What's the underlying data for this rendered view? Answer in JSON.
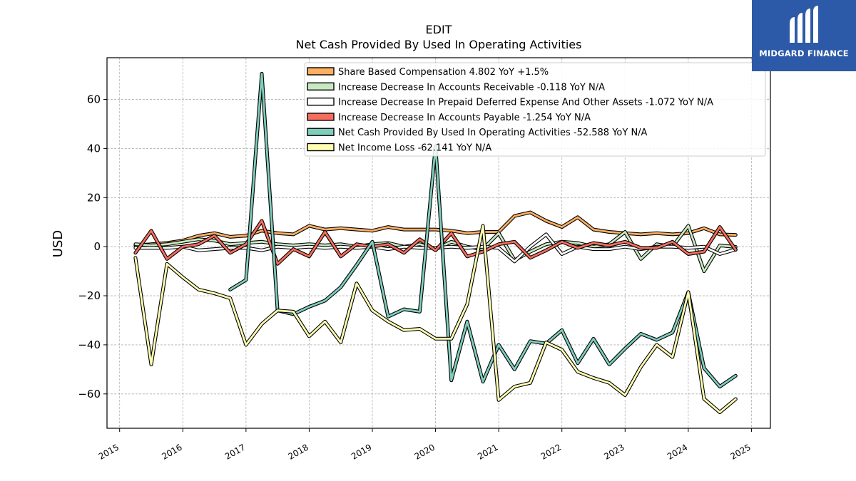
{
  "brand": {
    "name": "MIDGARD FINANCE",
    "bg": "#2d5aa8"
  },
  "chart_data": {
    "type": "line",
    "title": "EDIT",
    "subtitle": "Net Cash Provided By Used In Operating Activities",
    "xlabel": "",
    "ylabel": "USD",
    "xlim": [
      2014.8,
      2025.3
    ],
    "ylim": [
      -74,
      77
    ],
    "x_ticks": [
      2015,
      2016,
      2017,
      2018,
      2019,
      2020,
      2021,
      2022,
      2023,
      2024,
      2025
    ],
    "x_tick_labels": [
      "2015",
      "2016",
      "2017",
      "2018",
      "2019",
      "2020",
      "2021",
      "2022",
      "2023",
      "2024",
      "2025"
    ],
    "y_ticks": [
      -60,
      -40,
      -20,
      0,
      20,
      40,
      60
    ],
    "y_tick_labels": [
      "−60",
      "−40",
      "−20",
      "0",
      "20",
      "40",
      "60"
    ],
    "grid": true,
    "legend_position": "top-right",
    "series": [
      {
        "name": "Share Based Compensation",
        "legend_label": "Share Based Compensation  4.802 YoY +1.5%",
        "color": "#fdae61",
        "x": [
          2015.25,
          2015.5,
          2015.75,
          2016.0,
          2016.25,
          2016.5,
          2016.75,
          2017.0,
          2017.25,
          2017.5,
          2017.75,
          2018.0,
          2018.25,
          2018.5,
          2018.75,
          2019.0,
          2019.25,
          2019.5,
          2019.75,
          2020.0,
          2020.25,
          2020.5,
          2020.75,
          2021.0,
          2021.25,
          2021.5,
          2021.75,
          2022.0,
          2022.25,
          2022.5,
          2022.75,
          2023.0,
          2023.25,
          2023.5,
          2023.75,
          2024.0,
          2024.25,
          2024.5,
          2024.75
        ],
        "y": [
          0.5,
          1.0,
          1.5,
          2.5,
          4.5,
          5.5,
          4.0,
          4.5,
          6.5,
          5.5,
          5.0,
          8.5,
          7.0,
          7.5,
          7.0,
          6.5,
          8.0,
          7.0,
          7.0,
          7.0,
          6.5,
          5.5,
          6.0,
          6.0,
          12.5,
          14.0,
          10.5,
          8.0,
          12.0,
          7.0,
          6.0,
          5.5,
          5.0,
          5.5,
          5.0,
          5.5,
          7.5,
          5.0,
          4.8
        ]
      },
      {
        "name": "Increase Decrease In Accounts Receivable",
        "legend_label": "Increase Decrease In Accounts Receivable  -0.118 YoY N/A",
        "color": "#c7e9c0",
        "x": [
          2015.25,
          2015.5,
          2015.75,
          2016.0,
          2016.25,
          2016.5,
          2016.75,
          2017.0,
          2017.25,
          2017.5,
          2017.75,
          2018.0,
          2018.25,
          2018.5,
          2018.75,
          2019.0,
          2019.25,
          2019.5,
          2019.75,
          2020.0,
          2020.25,
          2020.5,
          2020.75,
          2021.0,
          2021.25,
          2021.5,
          2021.75,
          2022.0,
          2022.25,
          2022.5,
          2022.75,
          2023.0,
          2023.25,
          2023.5,
          2023.75,
          2024.0,
          2024.25,
          2024.5,
          2024.75
        ],
        "y": [
          1.0,
          0.5,
          1.0,
          2.0,
          3.0,
          2.5,
          1.0,
          1.5,
          2.0,
          1.0,
          0.5,
          1.0,
          0.5,
          1.0,
          0.0,
          1.0,
          1.5,
          0.0,
          1.0,
          -1.0,
          2.0,
          0.0,
          -1.0,
          5.5,
          -5.5,
          -2.0,
          1.0,
          2.0,
          1.5,
          0.0,
          1.0,
          6.0,
          -5.0,
          1.0,
          0.0,
          8.5,
          -10.0,
          0.5,
          -0.1
        ]
      },
      {
        "name": "Increase Decrease In Prepaid Deferred Expense And Other Assets",
        "legend_label": "Increase Decrease In Prepaid Deferred Expense And Other Assets  -1.072 YoY N/A",
        "color": "#ffffff",
        "x": [
          2015.25,
          2015.5,
          2015.75,
          2016.0,
          2016.25,
          2016.5,
          2016.75,
          2017.0,
          2017.25,
          2017.5,
          2017.75,
          2018.0,
          2018.25,
          2018.5,
          2018.75,
          2019.0,
          2019.25,
          2019.5,
          2019.75,
          2020.0,
          2020.25,
          2020.5,
          2020.75,
          2021.0,
          2021.25,
          2021.5,
          2021.75,
          2022.0,
          2022.25,
          2022.5,
          2022.75,
          2023.0,
          2023.25,
          2023.5,
          2023.75,
          2024.0,
          2024.25,
          2024.5,
          2024.75
        ],
        "y": [
          -0.5,
          -0.5,
          -0.5,
          0.0,
          -1.5,
          -1.0,
          -0.5,
          -0.5,
          -1.5,
          0.0,
          -0.5,
          0.0,
          -0.5,
          0.0,
          -0.5,
          0.0,
          -1.0,
          0.0,
          -0.5,
          -0.5,
          0.0,
          -0.5,
          0.0,
          -0.5,
          -6.0,
          0.0,
          5.0,
          -3.0,
          0.0,
          -1.0,
          -1.0,
          0.0,
          -1.0,
          0.0,
          0.0,
          -0.5,
          0.0,
          -3.0,
          -1.1
        ]
      },
      {
        "name": "Increase Decrease In Accounts Payable",
        "legend_label": "Increase Decrease In Accounts Payable  -1.254 YoY N/A",
        "color": "#f46d5d",
        "x": [
          2015.25,
          2015.5,
          2015.75,
          2016.0,
          2016.25,
          2016.5,
          2016.75,
          2017.0,
          2017.25,
          2017.5,
          2017.75,
          2018.0,
          2018.25,
          2018.5,
          2018.75,
          2019.0,
          2019.25,
          2019.5,
          2019.75,
          2020.0,
          2020.25,
          2020.5,
          2020.75,
          2021.0,
          2021.25,
          2021.5,
          2021.75,
          2022.0,
          2022.25,
          2022.5,
          2022.75,
          2023.0,
          2023.25,
          2023.5,
          2023.75,
          2024.0,
          2024.25,
          2024.5,
          2024.75
        ],
        "y": [
          -2.5,
          6.5,
          -5.0,
          0.0,
          1.0,
          4.5,
          -2.5,
          1.0,
          10.5,
          -7.0,
          -1.0,
          -4.0,
          6.0,
          -4.0,
          1.0,
          0.0,
          1.0,
          -2.5,
          3.0,
          -1.5,
          5.5,
          -4.0,
          -2.0,
          1.0,
          2.0,
          -4.5,
          -1.5,
          2.0,
          -0.5,
          1.5,
          0.5,
          2.0,
          -0.5,
          -0.5,
          2.0,
          -3.0,
          -2.0,
          8.0,
          -1.3
        ]
      },
      {
        "name": "Net Cash Provided By Used In Operating Activities",
        "legend_label": "Net Cash Provided By Used In Operating Activities  -52.588 YoY N/A",
        "color": "#7fcdbb",
        "x": [
          2016.75,
          2017.0,
          2017.25,
          2017.5,
          2017.75,
          2018.0,
          2018.25,
          2018.5,
          2018.75,
          2019.0,
          2019.25,
          2019.5,
          2019.75,
          2020.0,
          2020.25,
          2020.5,
          2020.75,
          2021.0,
          2021.25,
          2021.5,
          2021.75,
          2022.0,
          2022.25,
          2022.5,
          2022.75,
          2023.0,
          2023.25,
          2023.5,
          2023.75,
          2024.0,
          2024.25,
          2024.5,
          2024.75
        ],
        "y": [
          -17.5,
          -13.5,
          70.5,
          -26.0,
          -27.5,
          -24.5,
          -22.0,
          -16.5,
          -7.5,
          2.0,
          -28.5,
          -25.5,
          -26.5,
          41.0,
          -54.5,
          -30.5,
          -55.0,
          -40.0,
          -50.0,
          -38.5,
          -39.5,
          -34.0,
          -47.5,
          -37.5,
          -48.0,
          -41.5,
          -35.5,
          -38.0,
          -35.0,
          -18.5,
          -49.5,
          -57.0,
          -52.6
        ]
      },
      {
        "name": "Net Income Loss",
        "legend_label": "Net Income Loss  -62.141 YoY N/A",
        "color": "#ffffb3",
        "x": [
          2015.25,
          2015.5,
          2015.75,
          2016.0,
          2016.25,
          2016.5,
          2016.75,
          2017.0,
          2017.25,
          2017.5,
          2017.75,
          2018.0,
          2018.25,
          2018.5,
          2018.75,
          2019.0,
          2019.25,
          2019.5,
          2019.75,
          2020.0,
          2020.25,
          2020.5,
          2020.75,
          2021.0,
          2021.25,
          2021.5,
          2021.75,
          2022.0,
          2022.25,
          2022.5,
          2022.75,
          2023.0,
          2023.25,
          2023.5,
          2023.75,
          2024.0,
          2024.25,
          2024.5,
          2024.75
        ],
        "y": [
          -4.5,
          -48.0,
          -7.0,
          -12.5,
          -17.5,
          -19.0,
          -21.0,
          -40.0,
          -31.5,
          -26.0,
          -26.5,
          -36.5,
          -30.5,
          -39.0,
          -15.0,
          -26.0,
          -30.5,
          -34.0,
          -33.5,
          -37.5,
          -37.5,
          -23.5,
          8.5,
          -62.5,
          -57.0,
          -55.5,
          -39.0,
          -42.0,
          -51.0,
          -53.5,
          -55.5,
          -60.5,
          -49.0,
          -40.0,
          -45.0,
          -18.5,
          -62.0,
          -67.5,
          -62.1
        ]
      }
    ]
  }
}
